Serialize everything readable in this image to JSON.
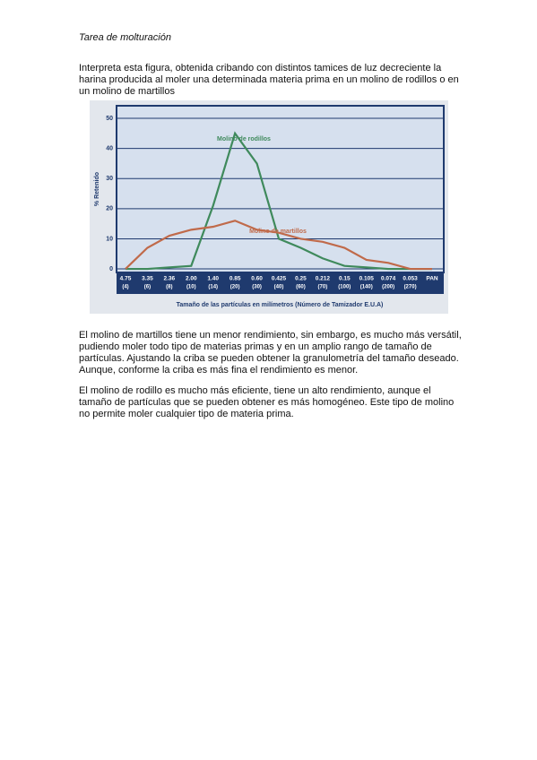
{
  "header": {
    "title": "Tarea de molturación"
  },
  "intro": "Interpreta esta figura, obtenida cribando con distintos tamices de luz decreciente la harina producida al moler una determinada materia prima en un molino de rodillos o en un molino de martillos",
  "chart_data": {
    "type": "line",
    "ylabel": "% Retenido",
    "xlabel": "Tamaño de las partículas en milímetros (Número de Tamizador E.U.A)",
    "categories": [
      "4.75",
      "3.35",
      "2.36",
      "2.00",
      "1.40",
      "0.85",
      "0.60",
      "0.425",
      "0.25",
      "0.212",
      "0.15",
      "0.105",
      "0.074",
      "0.053",
      "PAN"
    ],
    "category_sublabels": [
      "(4)",
      "(6)",
      "(8)",
      "(10)",
      "(14)",
      "(20)",
      "(30)",
      "(40)",
      "(60)",
      "(70)",
      "(100)",
      "(140)",
      "(200)",
      "(270)",
      null
    ],
    "series": [
      {
        "name": "Molino de rodillos",
        "color": "#3f8a5c",
        "values": [
          0,
          0,
          0.5,
          1,
          21,
          45,
          35,
          10,
          7,
          3.5,
          1,
          0.5,
          0,
          0,
          0
        ]
      },
      {
        "name": "Molino de martillos",
        "color": "#c06a4a",
        "values": [
          0,
          7,
          11,
          13,
          14,
          16,
          13,
          12,
          10,
          9,
          7,
          3,
          2,
          0,
          0
        ]
      }
    ],
    "ylim": [
      -1,
      54
    ],
    "yticks": [
      0,
      10,
      20,
      30,
      40,
      50
    ],
    "grid": true
  },
  "paragraphs": [
    "El molino de martillos tiene un menor rendimiento, sin embargo, es mucho más versátil, pudiendo moler todo tipo de materias primas y en un amplio rango de tamaño de partículas. Ajustando la criba se pueden obtener la granulometría del tamaño deseado. Aunque, conforme la criba es más fina el rendimiento es menor.",
    "El molino de rodillo es mucho más eficiente, tiene un alto rendimiento, aunque el tamaño de partículas que se pueden obtener es más homogéneo. Este tipo de molino no permite moler cualquier tipo de materia prima."
  ]
}
